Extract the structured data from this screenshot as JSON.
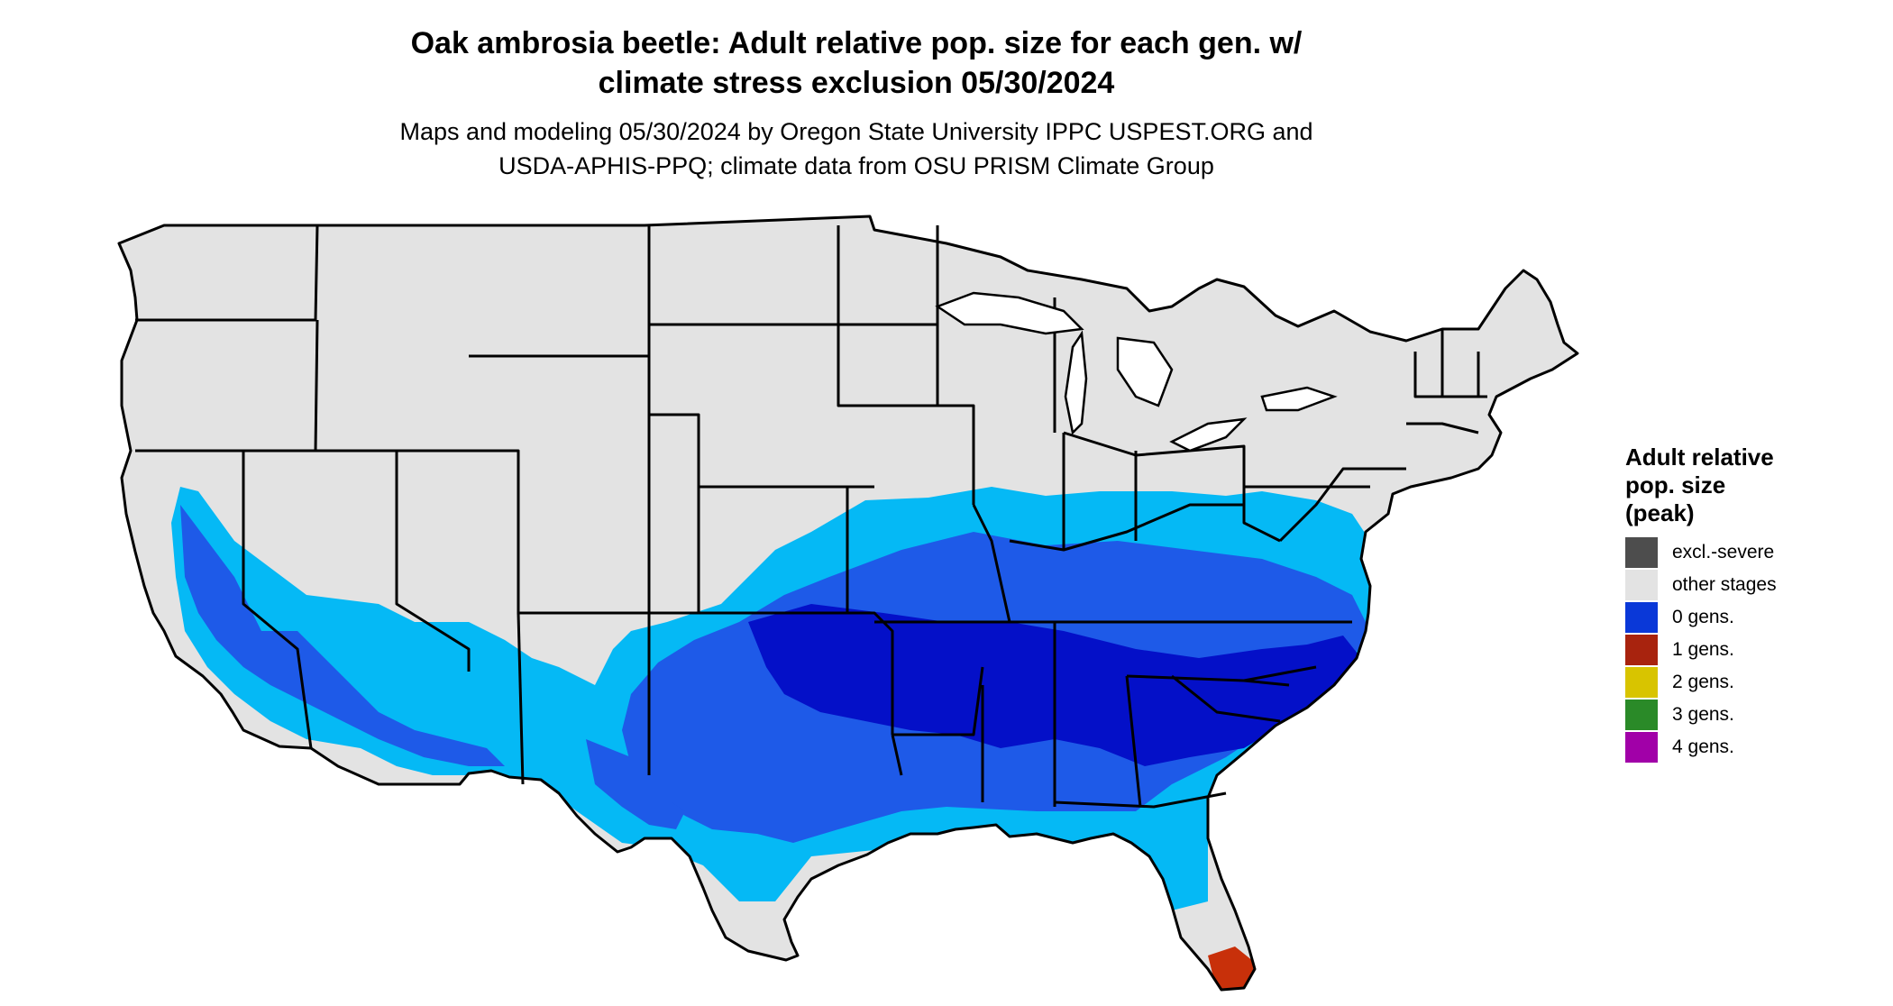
{
  "title": {
    "line1": "Oak ambrosia beetle: Adult relative pop. size for each gen. w/",
    "line2": "climate stress exclusion 05/30/2024"
  },
  "subtitle": {
    "line1": "Maps and modeling 05/30/2024 by Oregon State University IPPC USPEST.ORG and",
    "line2": "USDA-APHIS-PPQ; climate data from OSU PRISM Climate Group"
  },
  "legend": {
    "title_lines": [
      "Adult relative",
      "pop. size",
      "(peak)"
    ],
    "items": [
      {
        "label": "excl.-severe",
        "color": "#4d4d4d"
      },
      {
        "label": "other stages",
        "color": "#e3e3e3"
      },
      {
        "label": "0 gens.",
        "color": "#0a38d8"
      },
      {
        "label": "1 gens.",
        "color": "#a8230e"
      },
      {
        "label": "2 gens.",
        "color": "#d8c400"
      },
      {
        "label": "3 gens.",
        "color": "#2a8a28"
      },
      {
        "label": "4 gens.",
        "color": "#a100a8"
      }
    ]
  },
  "colors": {
    "land": "#e3e3e3",
    "light_blue": "#05b9f5",
    "mid_blue": "#1e5ae8",
    "dark_blue": "#0410c8",
    "south_florida": "#c8300a",
    "borders": "#000000"
  }
}
